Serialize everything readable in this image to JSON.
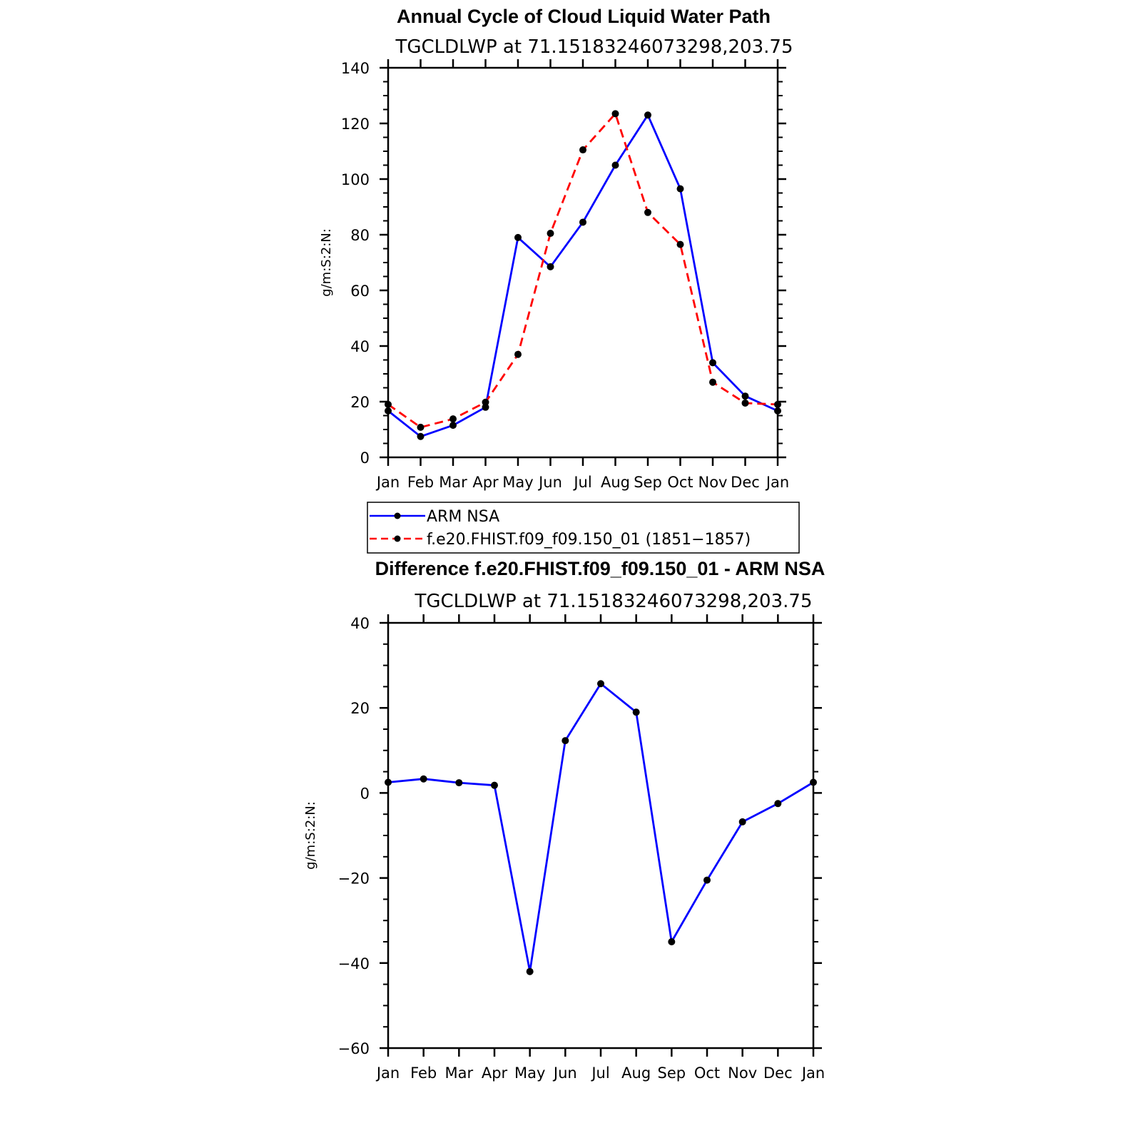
{
  "chart_data": [
    {
      "type": "line",
      "title": "Annual Cycle of Cloud Liquid Water Path",
      "subtitle": "TGCLDLWP at 71.15183246073298,203.75",
      "ylabel": "g/m:S:2:N:",
      "xlabel": "",
      "categories": [
        "Jan",
        "Feb",
        "Mar",
        "Apr",
        "May",
        "Jun",
        "Jul",
        "Aug",
        "Sep",
        "Oct",
        "Nov",
        "Dec",
        "Jan"
      ],
      "ylim": [
        0,
        140
      ],
      "yticks": [
        "0",
        "20",
        "40",
        "60",
        "80",
        "100",
        "120",
        "140"
      ],
      "grid": false,
      "legend_position": "bottom",
      "series": [
        {
          "name": "ARM NSA",
          "color": "#0000ff",
          "dash": "solid",
          "values": [
            16.7,
            7.5,
            11.5,
            18.0,
            79.0,
            68.5,
            84.5,
            105.0,
            123.0,
            96.5,
            34.0,
            22.0,
            16.7
          ]
        },
        {
          "name": "f.e20.FHIST.f09_f09.150_01 (1851−1857)",
          "color": "#ff0000",
          "dash": "dashed",
          "values": [
            19.0,
            10.8,
            13.8,
            19.8,
            37.0,
            80.5,
            110.5,
            123.5,
            88.0,
            76.5,
            27.0,
            19.5,
            19.0
          ]
        }
      ]
    },
    {
      "type": "line",
      "title": "Difference f.e20.FHIST.f09_f09.150_01 - ARM NSA",
      "subtitle": "TGCLDLWP at 71.15183246073298,203.75",
      "ylabel": "g/m:S:2:N:",
      "xlabel": "",
      "categories": [
        "Jan",
        "Feb",
        "Mar",
        "Apr",
        "May",
        "Jun",
        "Jul",
        "Aug",
        "Sep",
        "Oct",
        "Nov",
        "Dec",
        "Jan"
      ],
      "ylim": [
        -60,
        40
      ],
      "yticks": [
        "−60",
        "−40",
        "−20",
        "0",
        "20",
        "40"
      ],
      "grid": false,
      "series": [
        {
          "color": "#0000ff",
          "dash": "solid",
          "values": [
            2.5,
            3.3,
            2.4,
            1.8,
            -42.0,
            12.3,
            25.7,
            19.0,
            -35.0,
            -20.5,
            -6.8,
            -2.5,
            2.5
          ]
        }
      ]
    }
  ]
}
